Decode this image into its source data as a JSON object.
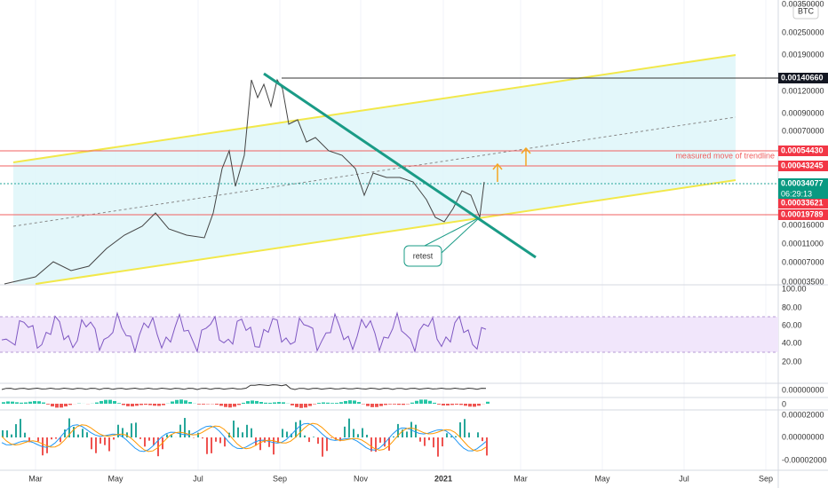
{
  "header": {
    "currency": "BTC"
  },
  "price_axis": {
    "labels": [
      "0.00350000",
      "0.00250000",
      "0.00190000",
      "0.00120000",
      "0.00090000",
      "0.00070000",
      "0.00016000",
      "0.00011000",
      "0.00007000",
      "0.00003500"
    ]
  },
  "price_tags": [
    {
      "label": "0.00140660"
    },
    {
      "label": "0.00054430"
    },
    {
      "label": "0.00043245"
    },
    {
      "label": "0.00034077"
    },
    {
      "label": "0.00033621"
    },
    {
      "label": "0.00019789"
    }
  ],
  "countdown": "06:29:13",
  "annotations": {
    "measured_move": "measured move of trendline",
    "retest": "retest"
  },
  "rsi_axis": {
    "labels": [
      "100.00",
      "80.00",
      "60.00",
      "40.00",
      "20.00"
    ]
  },
  "volume_axis": {
    "labels": [
      "0.00000000"
    ]
  },
  "histogram_axis": {
    "labels": [
      "0"
    ]
  },
  "macd_axis": {
    "labels": [
      "0.00002000",
      "0.00000000",
      "-0.00002000"
    ]
  },
  "time_axis": {
    "labels": [
      "Mar",
      "May",
      "Jul",
      "Sep",
      "Nov",
      "2021",
      "Mar",
      "May",
      "Jul",
      "Sep"
    ]
  }
}
